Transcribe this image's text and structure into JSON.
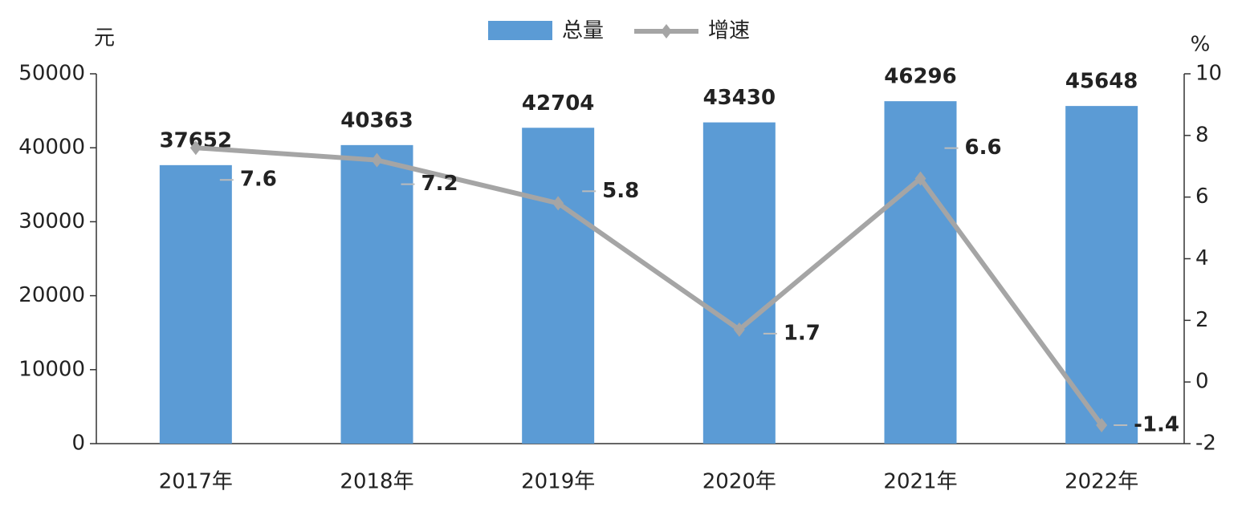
{
  "chart_data": {
    "type": "bar",
    "y_label": "元",
    "y2_label": "%",
    "categories": [
      "2017年",
      "2018年",
      "2019年",
      "2020年",
      "2021年",
      "2022年"
    ],
    "series": [
      {
        "name": "总量",
        "color": "#5b9bd5",
        "values": [
          37652,
          40363,
          42704,
          43430,
          46296,
          45648
        ]
      },
      {
        "name": "增速",
        "color": "#a5a5a5",
        "values": [
          7.6,
          7.2,
          5.8,
          1.7,
          6.6,
          -1.4
        ],
        "axis": "y2"
      }
    ],
    "ylim": [
      0,
      50000
    ],
    "yticks": [
      0,
      10000,
      20000,
      30000,
      40000,
      50000
    ],
    "y2lim": [
      -2,
      10
    ],
    "y2ticks": [
      -2,
      0,
      2,
      4,
      6,
      8,
      10
    ],
    "legend": "top"
  }
}
